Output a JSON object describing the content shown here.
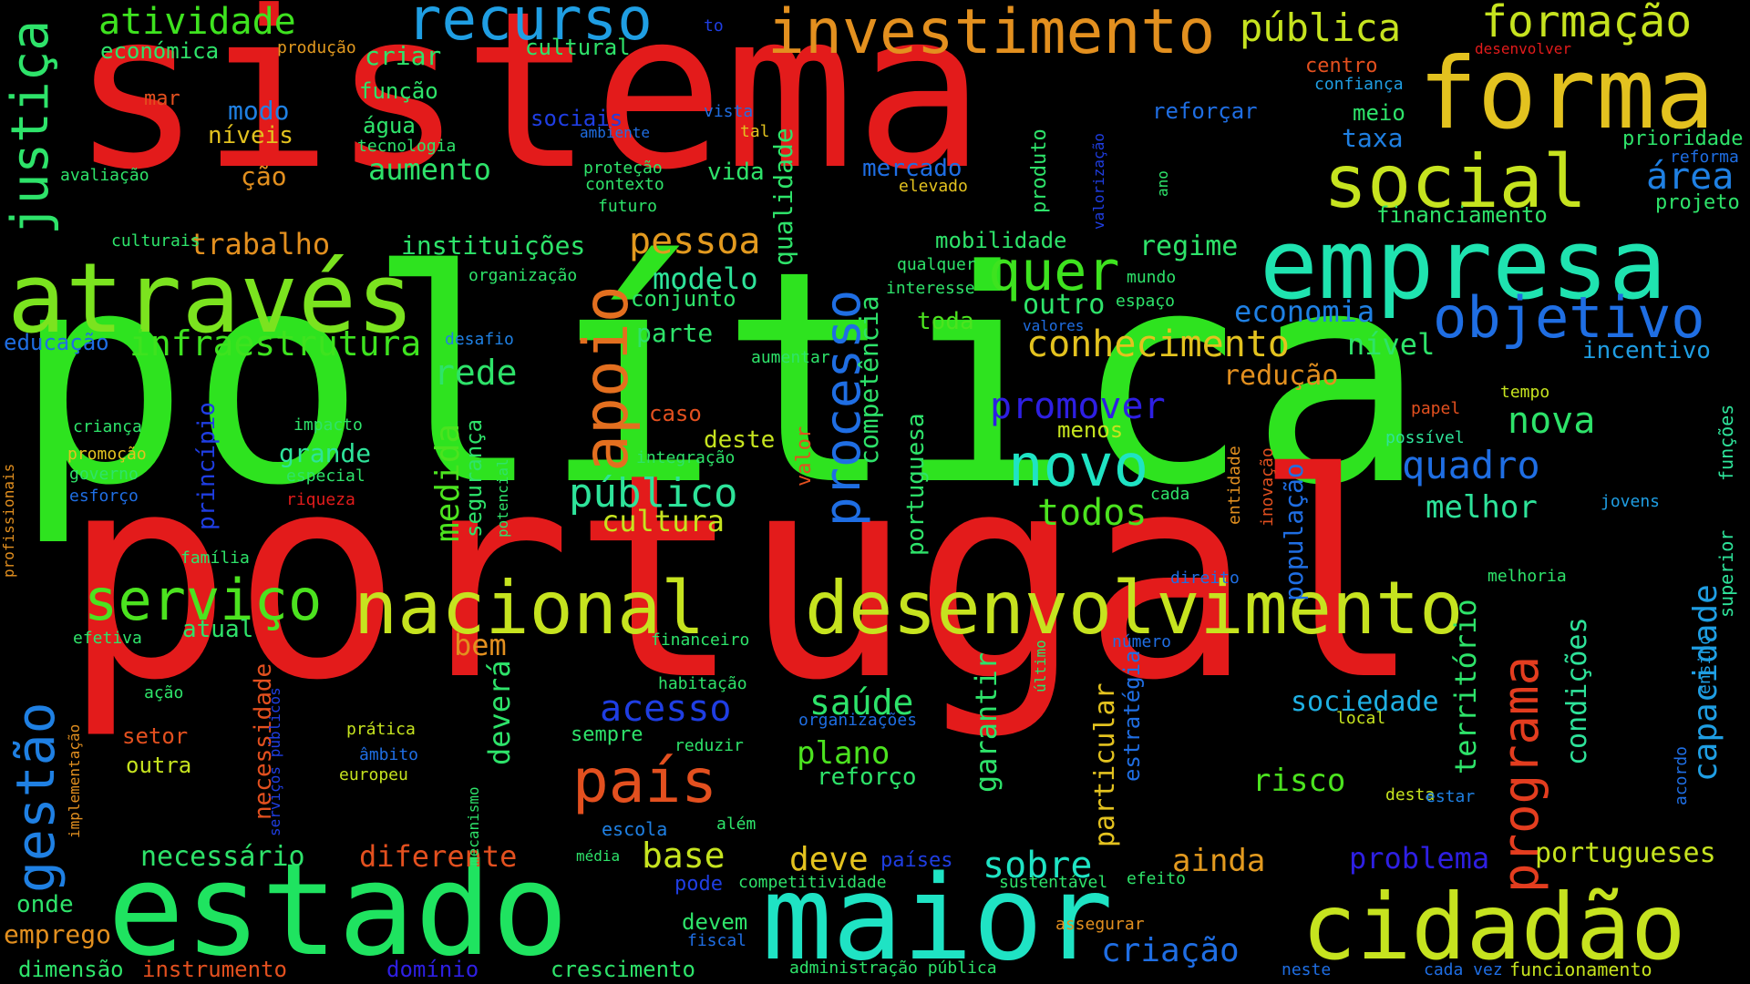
{
  "words": [
    {
      "text": "política",
      "color": "#2ee31f"
    },
    {
      "text": "portugal",
      "color": "#e31b1b"
    },
    {
      "text": "sistema",
      "color": "#e31b1b"
    },
    {
      "text": "estado",
      "color": "#1fe360"
    },
    {
      "text": "maior",
      "color": "#1fe3c4"
    },
    {
      "text": "cidadão",
      "color": "#c6e31f"
    },
    {
      "text": "através",
      "color": "#7be31f"
    },
    {
      "text": "empresa",
      "color": "#1fe3b0"
    },
    {
      "text": "forma",
      "color": "#e3c21f"
    },
    {
      "text": "desenvolvimento",
      "color": "#c6e31f"
    },
    {
      "text": "nacional",
      "color": "#c6e31f"
    },
    {
      "text": "social",
      "color": "#c6e31f"
    },
    {
      "text": "investimento",
      "color": "#e3901f"
    },
    {
      "text": "recurso",
      "color": "#1f9ee3"
    },
    {
      "text": "objetivo",
      "color": "#1f6ee3"
    },
    {
      "text": "quer",
      "color": "#3ee31f"
    },
    {
      "text": "novo",
      "color": "#1fe3c4"
    },
    {
      "text": "serviço",
      "color": "#4ce31f"
    },
    {
      "text": "país",
      "color": "#e3501f"
    },
    {
      "text": "apoio",
      "color": "#e36f1f"
    },
    {
      "text": "processo",
      "color": "#1f6ee3"
    },
    {
      "text": "programa",
      "color": "#e33d1f"
    },
    {
      "text": "justiça",
      "color": "#2ee36a"
    },
    {
      "text": "gestão",
      "color": "#1f80e3"
    },
    {
      "text": "formação",
      "color": "#c6e31f"
    },
    {
      "text": "pública",
      "color": "#c6e31f"
    },
    {
      "text": "atividade",
      "color": "#3ee31f"
    },
    {
      "text": "conhecimento",
      "color": "#e3c21f"
    },
    {
      "text": "infraestrutura",
      "color": "#3ee31f"
    },
    {
      "text": "público",
      "color": "#2ee39a"
    },
    {
      "text": "pessoa",
      "color": "#e39a1f"
    },
    {
      "text": "acesso",
      "color": "#1f3ee3"
    },
    {
      "text": "saúde",
      "color": "#2ee36a"
    },
    {
      "text": "todos",
      "color": "#4ce31f"
    },
    {
      "text": "quadro",
      "color": "#1f6ee3"
    },
    {
      "text": "nova",
      "color": "#2ee36a"
    },
    {
      "text": "promover",
      "color": "#2e1fe3"
    },
    {
      "text": "economia",
      "color": "#1f80e3"
    },
    {
      "text": "área",
      "color": "#1f80e3"
    },
    {
      "text": "melhor",
      "color": "#2ee39a"
    },
    {
      "text": "rede",
      "color": "#2ee36a"
    },
    {
      "text": "medida",
      "color": "#4ce31f"
    },
    {
      "text": "modelo",
      "color": "#2ee39a"
    },
    {
      "text": "criação",
      "color": "#1f6ee3"
    },
    {
      "text": "sobre",
      "color": "#1fe3c4"
    },
    {
      "text": "base",
      "color": "#c6e31f"
    },
    {
      "text": "deve",
      "color": "#e3c21f"
    },
    {
      "text": "ainda",
      "color": "#e39a1f"
    },
    {
      "text": "risco",
      "color": "#4ce31f"
    },
    {
      "text": "plano",
      "color": "#4ce31f"
    },
    {
      "text": "diferente",
      "color": "#e3501f"
    },
    {
      "text": "necessário",
      "color": "#2ee36a"
    },
    {
      "text": "sociedade",
      "color": "#1fb0e3"
    },
    {
      "text": "problema",
      "color": "#2e1fe3"
    },
    {
      "text": "portugueses",
      "color": "#c6e31f"
    },
    {
      "text": "capacidade",
      "color": "#1f9ee3"
    },
    {
      "text": "redução",
      "color": "#e3901f"
    },
    {
      "text": "regime",
      "color": "#2ee36a"
    },
    {
      "text": "outro",
      "color": "#2ee36a"
    },
    {
      "text": "nível",
      "color": "#2ee36a"
    },
    {
      "text": "incentivo",
      "color": "#1f9ee3"
    },
    {
      "text": "cultura",
      "color": "#c6e31f"
    },
    {
      "text": "parte",
      "color": "#2ee36a"
    },
    {
      "text": "conjunto",
      "color": "#2ee36a"
    },
    {
      "text": "aumento",
      "color": "#2ee36a"
    },
    {
      "text": "trabalho",
      "color": "#e3901f"
    },
    {
      "text": "instituições",
      "color": "#2ee36a"
    },
    {
      "text": "bem",
      "color": "#e3901f"
    },
    {
      "text": "atual",
      "color": "#2ee36a"
    },
    {
      "text": "grande",
      "color": "#2ee39a"
    },
    {
      "text": "deverá",
      "color": "#2ee36a"
    },
    {
      "text": "garantir",
      "color": "#2ee36a"
    },
    {
      "text": "particular",
      "color": "#e3c21f"
    },
    {
      "text": "território",
      "color": "#2ee36a"
    },
    {
      "text": "condições",
      "color": "#2ee39a"
    },
    {
      "text": "qualidade",
      "color": "#2ee36a"
    },
    {
      "text": "competência",
      "color": "#2ee36a"
    },
    {
      "text": "portuguesa",
      "color": "#2ee36a"
    },
    {
      "text": "segurança",
      "color": "#2ee36a"
    },
    {
      "text": "necessidade",
      "color": "#e3501f"
    },
    {
      "text": "população",
      "color": "#1f6ee3"
    },
    {
      "text": "princípio",
      "color": "#1f3ee3"
    },
    {
      "text": "estratégia",
      "color": "#1f6ee3"
    },
    {
      "text": "valor",
      "color": "#e3501f"
    },
    {
      "text": "modo",
      "color": "#1f80e3"
    },
    {
      "text": "criar",
      "color": "#2ee36a"
    },
    {
      "text": "cultural",
      "color": "#2ee36a"
    },
    {
      "text": "económica",
      "color": "#2ee36a"
    },
    {
      "text": "produção",
      "color": "#e39a1f"
    },
    {
      "text": "função",
      "color": "#2ee36a"
    },
    {
      "text": "água",
      "color": "#2ee36a"
    },
    {
      "text": "tecnologia",
      "color": "#2ee36a"
    },
    {
      "text": "níveis",
      "color": "#e3c21f"
    },
    {
      "text": "ção",
      "color": "#e3901f"
    },
    {
      "text": "mar",
      "color": "#e3501f"
    },
    {
      "text": "avaliação",
      "color": "#2ee36a"
    },
    {
      "text": "culturais",
      "color": "#2ee36a"
    },
    {
      "text": "sociais",
      "color": "#1f3ee3"
    },
    {
      "text": "ambiente",
      "color": "#1f6ee3"
    },
    {
      "text": "proteção",
      "color": "#2ee36a"
    },
    {
      "text": "contexto",
      "color": "#2ee36a"
    },
    {
      "text": "futuro",
      "color": "#2ee36a"
    },
    {
      "text": "vida",
      "color": "#2ee36a"
    },
    {
      "text": "vista",
      "color": "#1f6ee3"
    },
    {
      "text": "tal",
      "color": "#e3c21f"
    },
    {
      "text": "to",
      "color": "#1f3ee3"
    },
    {
      "text": "mercado",
      "color": "#1f6ee3"
    },
    {
      "text": "elevado",
      "color": "#e3c21f"
    },
    {
      "text": "produto",
      "color": "#2ee36a"
    },
    {
      "text": "valorização",
      "color": "#1f3ee3"
    },
    {
      "text": "ano",
      "color": "#2ee36a"
    },
    {
      "text": "reforçar",
      "color": "#1f6ee3"
    },
    {
      "text": "taxa",
      "color": "#1f80e3"
    },
    {
      "text": "meio",
      "color": "#2ee36a"
    },
    {
      "text": "centro",
      "color": "#e3501f"
    },
    {
      "text": "confiança",
      "color": "#1f9ee3"
    },
    {
      "text": "desenvolver",
      "color": "#e31b1b"
    },
    {
      "text": "prioridade",
      "color": "#2ee36a"
    },
    {
      "text": "reforma",
      "color": "#1f6ee3"
    },
    {
      "text": "projeto",
      "color": "#2ee36a"
    },
    {
      "text": "financiamento",
      "color": "#2ee36a"
    },
    {
      "text": "mobilidade",
      "color": "#2ee36a"
    },
    {
      "text": "qualquer",
      "color": "#2ee36a"
    },
    {
      "text": "interesse",
      "color": "#2ee36a"
    },
    {
      "text": "mundo",
      "color": "#2ee36a"
    },
    {
      "text": "espaço",
      "color": "#2ee36a"
    },
    {
      "text": "toda",
      "color": "#4ce31f"
    },
    {
      "text": "valores",
      "color": "#1f6ee3"
    },
    {
      "text": "organização",
      "color": "#2ee36a"
    },
    {
      "text": "educação",
      "color": "#1f6ee3"
    },
    {
      "text": "desafio",
      "color": "#1f80e3"
    },
    {
      "text": "aumentar",
      "color": "#2ee36a"
    },
    {
      "text": "caso",
      "color": "#e3501f"
    },
    {
      "text": "deste",
      "color": "#c6e31f"
    },
    {
      "text": "integração",
      "color": "#2ee36a"
    },
    {
      "text": "menos",
      "color": "#c6e31f"
    },
    {
      "text": "tempo",
      "color": "#c6e31f"
    },
    {
      "text": "papel",
      "color": "#e3501f"
    },
    {
      "text": "possível",
      "color": "#2ee39a"
    },
    {
      "text": "entidade",
      "color": "#e3901f"
    },
    {
      "text": "inovação",
      "color": "#e3501f"
    },
    {
      "text": "cada",
      "color": "#2ee36a"
    },
    {
      "text": "jovens",
      "color": "#1f9ee3"
    },
    {
      "text": "funções",
      "color": "#2ee39a"
    },
    {
      "text": "superior",
      "color": "#2ee39a"
    },
    {
      "text": "ensino",
      "color": "#1f9ee3"
    },
    {
      "text": "profissionais",
      "color": "#e3901f"
    },
    {
      "text": "criança",
      "color": "#2ee36a"
    },
    {
      "text": "promoção",
      "color": "#e3c21f"
    },
    {
      "text": "governo",
      "color": "#2ee36a"
    },
    {
      "text": "esforço",
      "color": "#1f6ee3"
    },
    {
      "text": "impacto",
      "color": "#2ee36a"
    },
    {
      "text": "especial",
      "color": "#2ee36a"
    },
    {
      "text": "riqueza",
      "color": "#e31b1b"
    },
    {
      "text": "potencial",
      "color": "#2ee36a"
    },
    {
      "text": "família",
      "color": "#2ee36a"
    },
    {
      "text": "efetiva",
      "color": "#2ee36a"
    },
    {
      "text": "direito",
      "color": "#1f6ee3"
    },
    {
      "text": "melhoria",
      "color": "#2ee36a"
    },
    {
      "text": "número",
      "color": "#1f6ee3"
    },
    {
      "text": "último",
      "color": "#2ee36a"
    },
    {
      "text": "financeiro",
      "color": "#2ee36a"
    },
    {
      "text": "habitação",
      "color": "#2ee36a"
    },
    {
      "text": "organizações",
      "color": "#1f6ee3"
    },
    {
      "text": "ação",
      "color": "#2ee36a"
    },
    {
      "text": "implementação",
      "color": "#e3901f"
    },
    {
      "text": "setor",
      "color": "#e3501f"
    },
    {
      "text": "outra",
      "color": "#c6e31f"
    },
    {
      "text": "prática",
      "color": "#c6e31f"
    },
    {
      "text": "âmbito",
      "color": "#1f6ee3"
    },
    {
      "text": "europeu",
      "color": "#c6e31f"
    },
    {
      "text": "serviços públicos",
      "color": "#1f3ee3"
    },
    {
      "text": "sempre",
      "color": "#2ee36a"
    },
    {
      "text": "reduzir",
      "color": "#2ee36a"
    },
    {
      "text": "local",
      "color": "#c6e31f"
    },
    {
      "text": "desta",
      "color": "#c6e31f"
    },
    {
      "text": "estar",
      "color": "#1f80e3"
    },
    {
      "text": "acordo",
      "color": "#1f6ee3"
    },
    {
      "text": "além",
      "color": "#2ee36a"
    },
    {
      "text": "escola",
      "color": "#1f80e3"
    },
    {
      "text": "mecanismo",
      "color": "#2ee36a"
    },
    {
      "text": "média",
      "color": "#2ee36a"
    },
    {
      "text": "pode",
      "color": "#1f3ee3"
    },
    {
      "text": "países",
      "color": "#1f3ee3"
    },
    {
      "text": "competitividade",
      "color": "#2ee36a"
    },
    {
      "text": "sustentável",
      "color": "#2ee36a"
    },
    {
      "text": "efeito",
      "color": "#2ee36a"
    },
    {
      "text": "devem",
      "color": "#2ee36a"
    },
    {
      "text": "fiscal",
      "color": "#1f6ee3"
    },
    {
      "text": "assegurar",
      "color": "#e3901f"
    },
    {
      "text": "onde",
      "color": "#2ee36a"
    },
    {
      "text": "emprego",
      "color": "#e3901f"
    },
    {
      "text": "dimensão",
      "color": "#2ee36a"
    },
    {
      "text": "instrumento",
      "color": "#e3501f"
    },
    {
      "text": "domínio",
      "color": "#2e1fe3"
    },
    {
      "text": "crescimento",
      "color": "#2ee36a"
    },
    {
      "text": "administração pública",
      "color": "#2ee36a"
    },
    {
      "text": "neste",
      "color": "#1f6ee3"
    },
    {
      "text": "cada vez",
      "color": "#1f6ee3"
    },
    {
      "text": "funcionamento",
      "color": "#c6e31f"
    },
    {
      "text": "reforço",
      "color": "#2ee36a"
    }
  ]
}
